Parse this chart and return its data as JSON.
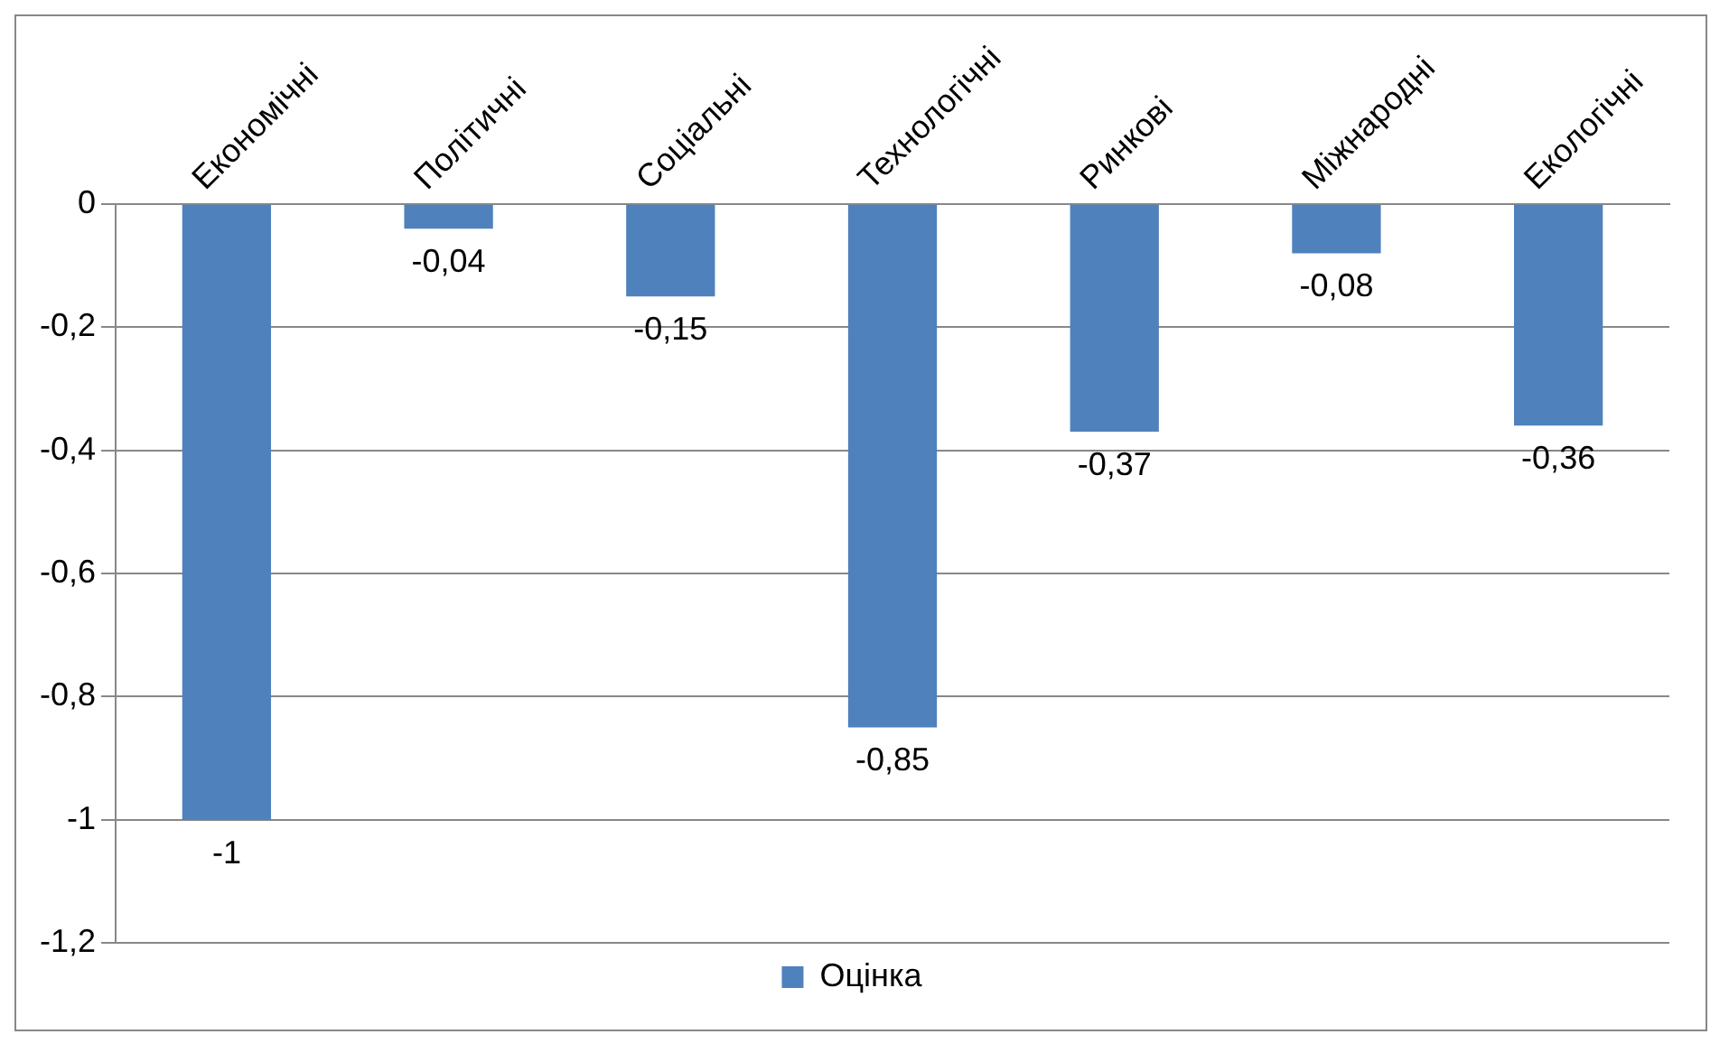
{
  "chart_data": {
    "type": "bar",
    "categories": [
      "Економічні",
      "Політичні",
      "Соціальні",
      "Технологічні",
      "Ринкові",
      "Міжнародні",
      "Екологічні"
    ],
    "series": [
      {
        "name": "Оцінка",
        "color": "#4f81bd",
        "values": [
          -1,
          -0.04,
          -0.15,
          -0.85,
          -0.37,
          -0.08,
          -0.36
        ],
        "value_labels": [
          "-1",
          "-0,04",
          "-0,15",
          "-0,85",
          "-0,37",
          "-0,08",
          "-0,36"
        ]
      }
    ],
    "ylim": [
      -1.2,
      0
    ],
    "yticks": [
      0,
      {
        "value": -0.2,
        "label": "-0,2"
      },
      {
        "value": -0.4,
        "label": "-0,4"
      },
      {
        "value": -0.6,
        "label": "-0,6"
      },
      {
        "value": -0.8,
        "label": "-0,8"
      },
      -1,
      {
        "value": -1.2,
        "label": "-1,2"
      }
    ],
    "grid": "y",
    "legend": "bottom"
  }
}
